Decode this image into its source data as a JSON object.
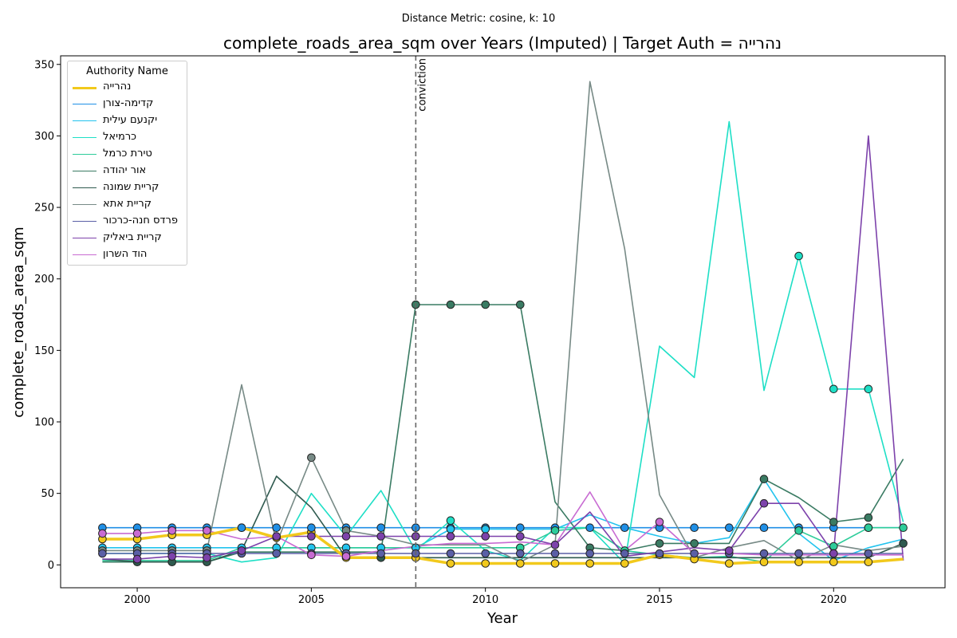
{
  "figure": {
    "suptitle": "Distance Metric: cosine, k: 10"
  },
  "chart_data": {
    "type": "line",
    "title": "complete_roads_area_sqm over Years (Imputed) | Target Auth = נהרייה",
    "xlabel": "Year",
    "ylabel": "complete_roads_area_sqm",
    "xlim": [
      1997.8,
      2023.2
    ],
    "ylim": [
      -16,
      356
    ],
    "xticks": [
      2000,
      2005,
      2010,
      2015,
      2020
    ],
    "yticks": [
      0,
      50,
      100,
      150,
      200,
      250,
      300,
      350
    ],
    "grid": false,
    "legend": {
      "title": "Authority Name",
      "placement": "top-left"
    },
    "annotations": [
      {
        "x": 2008,
        "label": "conviction",
        "style": "dashed-vertical-line"
      }
    ],
    "x": [
      1999,
      2000,
      2001,
      2002,
      2003,
      2004,
      2005,
      2006,
      2007,
      2008,
      2009,
      2010,
      2011,
      2012,
      2013,
      2014,
      2015,
      2016,
      2017,
      2018,
      2019,
      2020,
      2021,
      2022
    ],
    "series": [
      {
        "name": "נהרייה",
        "color": "#f2c91c",
        "target": true,
        "values": [
          18,
          18,
          21,
          21,
          26,
          19,
          23,
          5,
          5,
          5,
          1,
          1,
          1,
          1,
          1,
          1,
          7,
          4,
          1,
          2,
          2,
          2,
          2,
          4
        ],
        "imputed": [
          0,
          1,
          2,
          3,
          4,
          5,
          6,
          7,
          8,
          9,
          10,
          11,
          12,
          13,
          14,
          15,
          16,
          17,
          18,
          19,
          20,
          21,
          22
        ]
      },
      {
        "name": "קדימה-צורן",
        "color": "#1f8fe6",
        "values": [
          26,
          26,
          26,
          26,
          26,
          26,
          26,
          26,
          26,
          26,
          26,
          26,
          26,
          26,
          26,
          26,
          26,
          26,
          26,
          26,
          26,
          26,
          26,
          26
        ],
        "imputed": [
          0,
          1,
          2,
          3,
          4,
          5,
          6,
          7,
          8,
          9,
          10,
          11,
          12,
          13,
          14,
          15,
          16,
          17,
          18,
          19,
          20,
          21,
          22
        ]
      },
      {
        "name": "יקנעם עילית",
        "color": "#22c3ee",
        "values": [
          12,
          12,
          12,
          12,
          12,
          12,
          12,
          12,
          12,
          12,
          25,
          25,
          25,
          25,
          35,
          26,
          20,
          15,
          19,
          60,
          22,
          3,
          12,
          18
        ],
        "imputed": [
          0,
          1,
          2,
          3,
          4,
          5,
          6,
          7,
          8,
          9,
          10,
          11
        ]
      },
      {
        "name": "כרמיאל",
        "color": "#1edfc6",
        "values": [
          8,
          8,
          8,
          8,
          2,
          5,
          50,
          20,
          52,
          10,
          31,
          10,
          3,
          26,
          26,
          1,
          153,
          131,
          310,
          122,
          216,
          123,
          123,
          30
        ],
        "imputed": [
          10,
          20,
          21,
          22
        ]
      },
      {
        "name": "טירת כרמל",
        "color": "#2dcc9a",
        "values": [
          3,
          3,
          3,
          3,
          12,
          12,
          12,
          12,
          12,
          12,
          12,
          12,
          12,
          24,
          26,
          10,
          7,
          5,
          6,
          2,
          24,
          13,
          26,
          26
        ],
        "imputed": [
          12,
          13,
          15,
          20,
          21,
          22,
          23
        ]
      },
      {
        "name": "אור יהודה",
        "color": "#3a7b63",
        "values": [
          2,
          2,
          2,
          2,
          9,
          9,
          9,
          9,
          9,
          182,
          182,
          182,
          182,
          44,
          12,
          10,
          15,
          15,
          15,
          60,
          47,
          30,
          33,
          74
        ],
        "imputed": [
          9,
          10,
          11,
          12,
          14,
          16,
          17,
          19,
          21,
          22
        ]
      },
      {
        "name": "קריית שמונה",
        "color": "#2f5a4f",
        "values": [
          4,
          2,
          2,
          2,
          10,
          62,
          40,
          5,
          5,
          5,
          5,
          5,
          5,
          5,
          5,
          5,
          5,
          5,
          5,
          5,
          5,
          5,
          5,
          15
        ],
        "imputed": [
          1,
          2,
          3,
          8,
          23
        ]
      },
      {
        "name": "קריית אתא",
        "color": "#778a86",
        "values": [
          10,
          10,
          10,
          10,
          126,
          15,
          75,
          24,
          20,
          14,
          14,
          14,
          2,
          14,
          338,
          221,
          49,
          5,
          12,
          17,
          3,
          14,
          10,
          13
        ],
        "imputed": [
          0,
          1,
          2,
          3,
          6,
          7
        ]
      },
      {
        "name": "פרדס חנה-כרכור",
        "color": "#5a5fa6",
        "values": [
          8,
          8,
          8,
          8,
          8,
          8,
          8,
          8,
          8,
          8,
          8,
          8,
          8,
          8,
          8,
          8,
          8,
          8,
          8,
          8,
          8,
          8,
          8,
          8
        ],
        "imputed": [
          0,
          1,
          2,
          3,
          4,
          5,
          6,
          7,
          8,
          9,
          10,
          11,
          12,
          13,
          14,
          15,
          16,
          17,
          18,
          19,
          20,
          21,
          22
        ]
      },
      {
        "name": "קריית ביאליק",
        "color": "#7d42ab",
        "values": [
          4,
          4,
          6,
          5,
          10,
          20,
          20,
          20,
          20,
          20,
          20,
          20,
          20,
          14,
          37,
          6,
          9,
          12,
          10,
          43,
          43,
          8,
          300,
          3
        ],
        "imputed": [
          1,
          2,
          3,
          4,
          5,
          6,
          7,
          8,
          9,
          10,
          11,
          12,
          13,
          18,
          19,
          21
        ]
      },
      {
        "name": "הוד השרון",
        "color": "#c86bd2",
        "values": [
          22,
          22,
          24,
          24,
          18,
          20,
          7,
          6,
          10,
          13,
          15,
          15,
          16,
          14,
          51,
          10,
          30,
          8,
          8,
          7,
          7,
          7,
          7,
          7
        ],
        "imputed": [
          0,
          1,
          2,
          3,
          6,
          7,
          16
        ]
      }
    ]
  }
}
